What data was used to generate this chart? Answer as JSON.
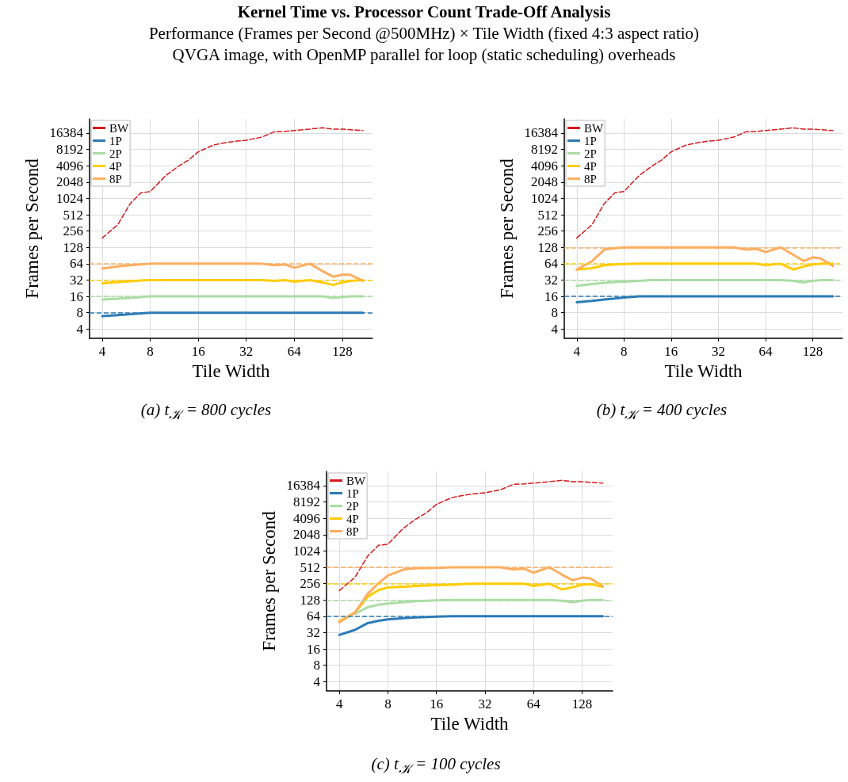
{
  "chart_data": [
    {
      "type": "line",
      "title": "Kernel Time vs. Processor Count Trade-Off Analysis",
      "subtitle": "Performance (Frames per Second @500MHz) × Tile Width (fixed 4:3 aspect ratio)\nQVGA image, with OpenMP parallel for loop (static scheduling) overheads",
      "xlabel": "Tile Width",
      "ylabel": "Frames per Second",
      "annotations": [
        "(a) t$_{𝒦}$ = 800 cycles"
      ],
      "x": [
        4,
        5,
        6,
        7,
        8,
        10,
        12,
        14,
        16,
        20,
        24,
        28,
        32,
        40,
        48,
        56,
        64,
        80,
        96,
        112,
        128,
        144,
        172
      ],
      "series": [
        {
          "name": "BW",
          "color": "#d7191c",
          "line_style": "dashed",
          "values": [
            191,
            335,
            830,
            1300,
            1370,
            2700,
            4000,
            5300,
            7400,
            9900,
            11000,
            11700,
            12100,
            13800,
            17300,
            17600,
            18300,
            19400,
            20500,
            19400,
            19400,
            18900,
            18300
          ]
        },
        {
          "name": "1P",
          "color": "#2c7bb6",
          "values": [
            6.9,
            7.2,
            7.5,
            7.8,
            8,
            8,
            8,
            8,
            8,
            8,
            8,
            8,
            8,
            8,
            8,
            8,
            8,
            8,
            8,
            8,
            8,
            8,
            8
          ]
        },
        {
          "name": "2P",
          "color": "#abdda4",
          "values": [
            14,
            14.5,
            15,
            15.5,
            16,
            16,
            16,
            16,
            16,
            16,
            16,
            16,
            16,
            16,
            16,
            16,
            16,
            16,
            16,
            15,
            15.5,
            16,
            16
          ]
        },
        {
          "name": "4P",
          "color": "#ffcc00",
          "values": [
            28,
            29.5,
            30.5,
            31.5,
            32,
            32,
            32,
            32,
            32,
            32,
            32,
            32,
            32,
            32,
            31,
            32,
            30,
            32,
            29,
            26,
            29,
            31,
            32
          ]
        },
        {
          "name": "8P",
          "color": "#fdae61",
          "values": [
            52,
            57,
            60,
            62,
            64,
            64,
            64,
            64,
            64,
            64,
            64,
            64,
            64,
            64,
            60,
            62,
            54,
            64,
            47,
            37,
            40,
            40,
            31
          ]
        }
      ],
      "ref_lines": [
        {
          "axis": "y",
          "value": 8,
          "color": "#2c7bb6",
          "line_style": "dashed"
        },
        {
          "axis": "y",
          "value": 16,
          "color": "#abdda4",
          "line_style": "dashed"
        },
        {
          "axis": "y",
          "value": 32,
          "color": "#ffcc00",
          "line_style": "dashed"
        },
        {
          "axis": "y",
          "value": 64,
          "color": "#fdae61",
          "line_style": "dashed"
        }
      ],
      "log": "xy",
      "xlim": [
        3.33,
        198
      ],
      "xticks": [
        4,
        8,
        16,
        32,
        64,
        128
      ],
      "ylim": [
        2.7,
        30000
      ],
      "yticks": [
        4,
        8,
        16,
        32,
        64,
        128,
        256,
        512,
        1024,
        2048,
        4096,
        8192,
        16384
      ],
      "grid": true,
      "legend": "top left",
      "marker": "none",
      "line_style": "solid"
    },
    {
      "type": "line",
      "xlabel": "Tile Width",
      "ylabel": "Frames per Second",
      "annotations": [
        "(b) t$_{𝒦}$ = 400 cycles"
      ],
      "x": [
        4,
        5,
        6,
        7,
        8,
        10,
        12,
        14,
        16,
        20,
        24,
        28,
        32,
        40,
        48,
        56,
        64,
        80,
        96,
        112,
        128,
        144,
        172
      ],
      "series": [
        {
          "name": "BW",
          "color": "#d7191c",
          "line_style": "dashed",
          "values": [
            191,
            335,
            830,
            1300,
            1370,
            2700,
            4000,
            5300,
            7400,
            9900,
            11000,
            11700,
            12100,
            13800,
            17300,
            17600,
            18300,
            19400,
            20500,
            19400,
            19400,
            18900,
            18300
          ]
        },
        {
          "name": "1P",
          "color": "#2c7bb6",
          "values": [
            12.5,
            13.2,
            14,
            14.6,
            15.3,
            16,
            16,
            16,
            16,
            16,
            16,
            16,
            16,
            16,
            16,
            16,
            16,
            16,
            16,
            16,
            16,
            16,
            16
          ]
        },
        {
          "name": "2P",
          "color": "#abdda4",
          "values": [
            25,
            27,
            28.5,
            29.5,
            30,
            31,
            32,
            32,
            32,
            32,
            32,
            32,
            32,
            32,
            32,
            32,
            32,
            32,
            31,
            29,
            31,
            32,
            32
          ]
        },
        {
          "name": "4P",
          "color": "#ffcc00",
          "values": [
            50,
            53,
            60,
            62,
            63,
            64,
            64,
            64,
            64,
            64,
            64,
            64,
            64,
            64,
            64,
            64,
            60,
            64,
            50,
            57,
            62,
            64,
            64
          ]
        },
        {
          "name": "8P",
          "color": "#fdae61",
          "values": [
            50,
            71,
            117,
            124,
            128,
            128,
            128,
            128,
            128,
            128,
            128,
            128,
            128,
            128,
            117,
            120,
            105,
            128,
            94,
            72,
            84,
            80,
            58
          ]
        }
      ],
      "ref_lines": [
        {
          "axis": "y",
          "value": 16,
          "color": "#2c7bb6",
          "line_style": "dashed"
        },
        {
          "axis": "y",
          "value": 32,
          "color": "#abdda4",
          "line_style": "dashed"
        },
        {
          "axis": "y",
          "value": 64,
          "color": "#ffcc00",
          "line_style": "dashed"
        },
        {
          "axis": "y",
          "value": 128,
          "color": "#fdae61",
          "line_style": "dashed"
        }
      ],
      "log": "xy",
      "xlim": [
        3.33,
        198
      ],
      "xticks": [
        4,
        8,
        16,
        32,
        64,
        128
      ],
      "ylim": [
        2.7,
        30000
      ],
      "yticks": [
        4,
        8,
        16,
        32,
        64,
        128,
        256,
        512,
        1024,
        2048,
        4096,
        8192,
        16384
      ],
      "grid": true,
      "legend": "top left",
      "marker": "none",
      "line_style": "solid"
    },
    {
      "type": "line",
      "xlabel": "Tile Width",
      "ylabel": "Frames per Second",
      "annotations": [
        "(c) t$_{𝒦}$ = 100 cycles"
      ],
      "x": [
        4,
        5,
        6,
        7,
        8,
        10,
        12,
        14,
        16,
        20,
        24,
        28,
        32,
        40,
        48,
        56,
        64,
        80,
        96,
        112,
        128,
        144,
        172
      ],
      "series": [
        {
          "name": "BW",
          "color": "#d7191c",
          "line_style": "dashed",
          "values": [
            191,
            335,
            830,
            1300,
            1370,
            2700,
            4000,
            5300,
            7400,
            9900,
            11000,
            11700,
            12100,
            13800,
            17300,
            17600,
            18300,
            19400,
            20500,
            19400,
            19400,
            18900,
            18300
          ]
        },
        {
          "name": "1P",
          "color": "#2c7bb6",
          "values": [
            29,
            36,
            48,
            53,
            56,
            59,
            61,
            62,
            63,
            64,
            64,
            64,
            64,
            64,
            64,
            64,
            64,
            64,
            64,
            64,
            64,
            64,
            64
          ]
        },
        {
          "name": "2P",
          "color": "#abdda4",
          "values": [
            null,
            71,
            94,
            105,
            110,
            117,
            122,
            124,
            126,
            128,
            128,
            128,
            128,
            128,
            128,
            128,
            128,
            128,
            124,
            117,
            124,
            128,
            128
          ]
        },
        {
          "name": "4P",
          "color": "#ffcc00",
          "values": [
            52,
            75,
            147,
            195,
            218,
            225,
            232,
            236,
            240,
            244,
            252,
            256,
            256,
            256,
            256,
            256,
            232,
            256,
            200,
            220,
            244,
            250,
            225
          ]
        },
        {
          "name": "8P",
          "color": "#fdae61",
          "values": [
            50,
            75,
            167,
            260,
            362,
            466,
            490,
            495,
            500,
            512,
            512,
            512,
            512,
            512,
            466,
            485,
            408,
            512,
            375,
            296,
            330,
            320,
            231
          ]
        }
      ],
      "ref_lines": [
        {
          "axis": "y",
          "value": 64,
          "color": "#2c7bb6",
          "line_style": "dashed"
        },
        {
          "axis": "y",
          "value": 128,
          "color": "#abdda4",
          "line_style": "dashed"
        },
        {
          "axis": "y",
          "value": 256,
          "color": "#ffcc00",
          "line_style": "dashed"
        },
        {
          "axis": "y",
          "value": 512,
          "color": "#fdae61",
          "line_style": "dashed"
        }
      ],
      "log": "xy",
      "xlim": [
        3.33,
        198
      ],
      "xticks": [
        4,
        8,
        16,
        32,
        64,
        128
      ],
      "ylim": [
        2.7,
        30000
      ],
      "yticks": [
        4,
        8,
        16,
        32,
        64,
        128,
        256,
        512,
        1024,
        2048,
        4096,
        8192,
        16384
      ],
      "grid": true,
      "legend": "top left",
      "marker": "none",
      "line_style": "solid"
    }
  ]
}
